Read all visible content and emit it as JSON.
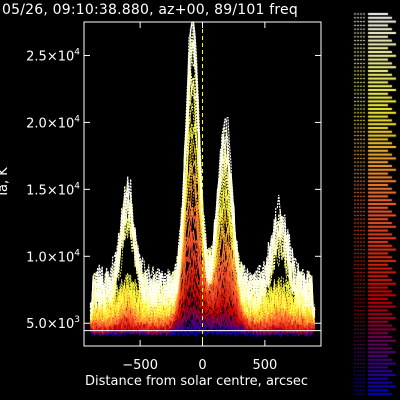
{
  "header": {
    "title": "05/26, 09:10:38.880, az+00, 89/101 freq"
  },
  "chart_data": {
    "type": "line",
    "xlabel": "Distance from solar centre, arcsec",
    "ylabel": "Ta, K",
    "xlim": [
      -950,
      950
    ],
    "ylim": [
      3300,
      27500
    ],
    "xticks": [
      {
        "value": -500,
        "label": "−500"
      },
      {
        "value": 0,
        "label": "0"
      },
      {
        "value": 500,
        "label": "500"
      }
    ],
    "yticks": [
      {
        "value": 5000,
        "mantissa": "5.0×10",
        "exp": "3"
      },
      {
        "value": 10000,
        "mantissa": "1.0×10",
        "exp": "4"
      },
      {
        "value": 15000,
        "mantissa": "1.5×10",
        "exp": "4"
      },
      {
        "value": 20000,
        "mantissa": "2.0×10",
        "exp": "4"
      },
      {
        "value": 25000,
        "mantissa": "2.5×10",
        "exp": "4"
      }
    ],
    "series_count": 101,
    "envelope_peak": {
      "x": -80,
      "y": 27000
    },
    "colors": {
      "axis": "#ffffff",
      "low_freq": "#0000cc",
      "mid_low": "#cc0000",
      "mid": "#ff6633",
      "mid_high": "#ffff33",
      "high_freq": "#ffffff",
      "marker": "#ffff00"
    }
  }
}
